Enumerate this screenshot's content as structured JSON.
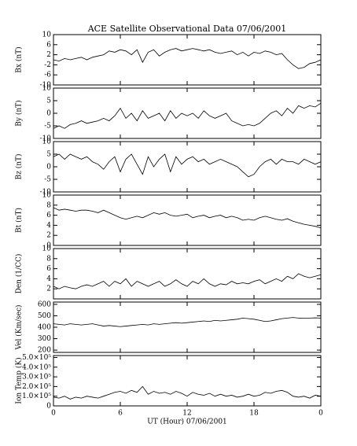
{
  "chart_data": {
    "type": "line",
    "title": "ACE Satellite Observational Data   07/06/2001",
    "xlabel": "UT (Hour)   07/06/2001",
    "color": "#000000",
    "xlim": [
      0,
      24
    ],
    "xticks": [
      0,
      6,
      12,
      18,
      {
        "value": 24,
        "label": "0"
      }
    ],
    "x": [
      0,
      0.5,
      1,
      1.5,
      2,
      2.5,
      3,
      3.5,
      4,
      4.5,
      5,
      5.5,
      6,
      6.5,
      7,
      7.5,
      8,
      8.5,
      9,
      9.5,
      10,
      10.5,
      11,
      11.5,
      12,
      12.5,
      13,
      13.5,
      14,
      14.5,
      15,
      15.5,
      16,
      16.5,
      17,
      17.5,
      18,
      18.5,
      19,
      19.5,
      20,
      20.5,
      21,
      21.5,
      22,
      22.5,
      23,
      23.5,
      24
    ],
    "panels": [
      {
        "ylabel": "Bx (nT)",
        "ylim": [
          -10,
          10
        ],
        "yticks": [
          -10,
          -6,
          -2,
          2,
          6,
          10
        ],
        "values": [
          0,
          -0.5,
          0.5,
          0,
          0.5,
          1,
          0,
          1,
          1.5,
          2,
          3.5,
          3,
          4,
          3.5,
          2,
          4,
          -1,
          3,
          4,
          1.5,
          3,
          4,
          4.5,
          3.5,
          4,
          4.5,
          4,
          3.5,
          4,
          3,
          2.5,
          3,
          3.5,
          2,
          3,
          1.5,
          3,
          2.5,
          3.5,
          3,
          2,
          2.5,
          0,
          -2,
          -3.5,
          -3,
          -1.5,
          -1,
          0
        ]
      },
      {
        "ylabel": "By (nT)",
        "ylim": [
          -10,
          10
        ],
        "yticks": [
          -10,
          -5,
          0,
          5,
          10
        ],
        "values": [
          -6,
          -5,
          -6,
          -4.5,
          -4,
          -3,
          -4,
          -3.5,
          -3,
          -2,
          -3,
          -1,
          2,
          -2,
          0,
          -3,
          1,
          -2,
          -1,
          0,
          -3,
          1,
          -2,
          0,
          -1,
          0,
          -2,
          1,
          -1,
          -2,
          -1,
          0,
          -3,
          -4,
          -5,
          -4.5,
          -5,
          -4,
          -2,
          0,
          1,
          -1,
          2,
          0,
          3,
          2,
          3,
          2.5,
          4
        ]
      },
      {
        "ylabel": "Bz (nT)",
        "ylim": [
          -10,
          10
        ],
        "yticks": [
          -10,
          -5,
          0,
          5,
          10
        ],
        "values": [
          4,
          5,
          3,
          5,
          4,
          3,
          4,
          2,
          1,
          -1,
          2,
          4,
          -2,
          3,
          5,
          1,
          -3,
          4,
          0,
          3,
          5,
          -2,
          4,
          1,
          3,
          4,
          2,
          3,
          1,
          2,
          3,
          2,
          1,
          0,
          -2,
          -4,
          -3,
          0,
          2,
          3,
          1,
          3,
          2,
          2,
          1,
          3,
          2,
          1,
          2
        ]
      },
      {
        "ylabel": "Bt (nT)",
        "ylim": [
          0,
          10
        ],
        "yticks": [
          0,
          2,
          4,
          6,
          8,
          10
        ],
        "values": [
          7.5,
          7,
          7.2,
          7,
          6.8,
          7,
          7,
          6.8,
          6.5,
          7,
          6.5,
          6,
          5.5,
          5.2,
          5.5,
          5.8,
          5.5,
          6,
          6.5,
          6.2,
          6.5,
          6,
          5.8,
          6,
          6.2,
          5.5,
          5.8,
          6,
          5.5,
          5.8,
          6,
          5.5,
          5.8,
          5.5,
          5,
          5.2,
          5,
          5.5,
          5.8,
          5.5,
          5.2,
          5,
          5.3,
          4.8,
          4.5,
          4.2,
          4,
          3.8,
          3.5
        ]
      },
      {
        "ylabel": "Den (1/CC)",
        "ylim": [
          0,
          10
        ],
        "yticks": [
          2,
          4,
          6,
          8,
          10
        ],
        "values": [
          2.5,
          2,
          2.5,
          2.2,
          2,
          2.5,
          2.8,
          2.5,
          3,
          3.5,
          2.5,
          3.5,
          3,
          4,
          2.5,
          3.5,
          3,
          2.5,
          3,
          3.5,
          2.5,
          3,
          3.8,
          3,
          2.5,
          3.5,
          3,
          4,
          3,
          2.5,
          3,
          2.8,
          3.5,
          3,
          3.2,
          3,
          3.5,
          3.8,
          3,
          3.5,
          4,
          3.5,
          4.5,
          4,
          5,
          4.5,
          4.2,
          4.5,
          4.8
        ]
      },
      {
        "ylabel": "Vel (Km/sec)",
        "ylim": [
          180,
          620
        ],
        "yticks": [
          200,
          300,
          400,
          500,
          600
        ],
        "values": [
          430,
          425,
          420,
          430,
          425,
          420,
          425,
          430,
          420,
          410,
          415,
          410,
          405,
          410,
          415,
          420,
          425,
          420,
          430,
          425,
          430,
          435,
          440,
          435,
          440,
          445,
          450,
          455,
          450,
          460,
          455,
          460,
          465,
          470,
          480,
          475,
          470,
          460,
          450,
          455,
          465,
          475,
          480,
          485,
          480,
          478,
          480,
          482,
          480
        ]
      },
      {
        "ylabel": "Ion Temp (K)",
        "ylim": [
          0,
          520000
        ],
        "yticks": [
          0,
          {
            "value": 100000,
            "label": "1.0×10⁵"
          },
          {
            "value": 200000,
            "label": "2.0×10⁵"
          },
          {
            "value": 300000,
            "label": "3.0×10⁵"
          },
          {
            "value": 400000,
            "label": "4.0×10⁵"
          },
          {
            "value": 500000,
            "label": "5.0×10⁵"
          }
        ],
        "values": [
          90000,
          80000,
          100000,
          70000,
          90000,
          80000,
          100000,
          90000,
          80000,
          100000,
          120000,
          140000,
          150000,
          130000,
          160000,
          140000,
          200000,
          120000,
          150000,
          130000,
          140000,
          120000,
          150000,
          130000,
          100000,
          140000,
          120000,
          110000,
          130000,
          100000,
          120000,
          100000,
          110000,
          90000,
          100000,
          120000,
          100000,
          110000,
          140000,
          130000,
          150000,
          160000,
          140000,
          100000,
          90000,
          100000,
          80000,
          110000,
          100000
        ]
      }
    ]
  }
}
